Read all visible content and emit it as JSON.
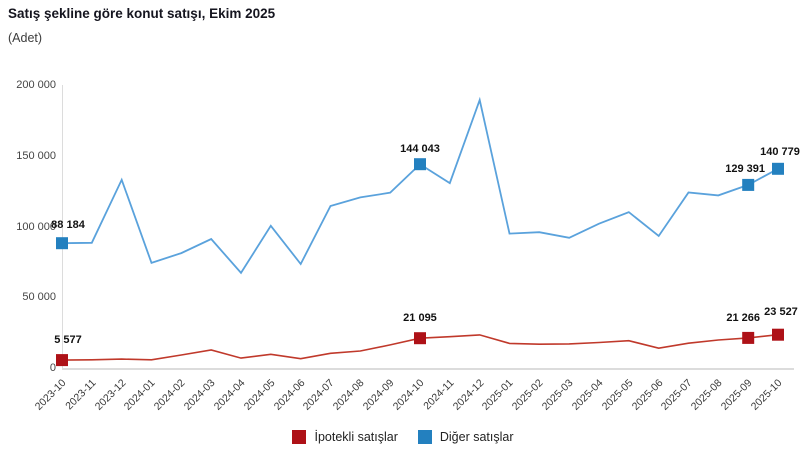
{
  "title": "Satış şekline göre konut satışı, Ekim 2025",
  "unit_label": "(Adet)",
  "colors": {
    "red_marker": "#AE1117",
    "red_line": "#C0392B",
    "blue_marker": "#2380BF",
    "blue_line": "#5AA2DC",
    "axis": "#DCDCDC",
    "tick_text": "#454545",
    "point_label_text": "#111111"
  },
  "chart_data": {
    "type": "line",
    "title": "Satış şekline göre konut satışı, Ekim 2025",
    "ylabel": "Adet",
    "xlabel": "",
    "grid": false,
    "legend_position": "bottom",
    "ylim": [
      0,
      200000
    ],
    "yticks": [
      {
        "value": 0,
        "label": "0"
      },
      {
        "value": 50000,
        "label": "50 000"
      },
      {
        "value": 100000,
        "label": "100 000"
      },
      {
        "value": 150000,
        "label": "150 000"
      },
      {
        "value": 200000,
        "label": "200 000"
      }
    ],
    "categories": [
      "2023-10",
      "2023-11",
      "2023-12",
      "2024-01",
      "2024-02",
      "2024-03",
      "2024-04",
      "2024-05",
      "2024-06",
      "2024-07",
      "2024-08",
      "2024-09",
      "2024-10",
      "2024-11",
      "2024-12",
      "2025-01",
      "2025-02",
      "2025-03",
      "2025-04",
      "2025-05",
      "2025-06",
      "2025-07",
      "2025-08",
      "2025-09",
      "2025-10"
    ],
    "series": [
      {
        "name": "İpotekli satışlar",
        "marker_color": "#AE1117",
        "line_color": "#C0392B",
        "values": [
          5577,
          5800,
          6300,
          5800,
          9200,
          12700,
          7000,
          9700,
          6600,
          10400,
          12000,
          16300,
          21095,
          22100,
          23400,
          17400,
          16800,
          17000,
          18000,
          19300,
          14000,
          17500,
          19800,
          21266,
          23527
        ],
        "value_labels": [
          {
            "index": 0,
            "text": "5 577"
          },
          {
            "index": 12,
            "text": "21 095"
          },
          {
            "index": 23,
            "text": "21 266"
          },
          {
            "index": 24,
            "text": "23 527"
          }
        ]
      },
      {
        "name": "Diğer satışlar",
        "marker_color": "#2380BF",
        "line_color": "#5AA2DC",
        "values": [
          88184,
          88500,
          133000,
          74300,
          81200,
          91200,
          67200,
          100500,
          73500,
          114500,
          120600,
          123900,
          144043,
          130700,
          189400,
          95000,
          96000,
          92000,
          102000,
          110200,
          93300,
          124000,
          122000,
          129391,
          140779
        ],
        "value_labels": [
          {
            "index": 0,
            "text": "88 184"
          },
          {
            "index": 12,
            "text": "144 043"
          },
          {
            "index": 23,
            "text": "129 391"
          },
          {
            "index": 24,
            "text": "140 779"
          }
        ]
      }
    ]
  },
  "legend": {
    "items": [
      {
        "label": "İpotekli satışlar",
        "color": "#AE1117"
      },
      {
        "label": "Diğer satışlar",
        "color": "#2380BF"
      }
    ]
  }
}
